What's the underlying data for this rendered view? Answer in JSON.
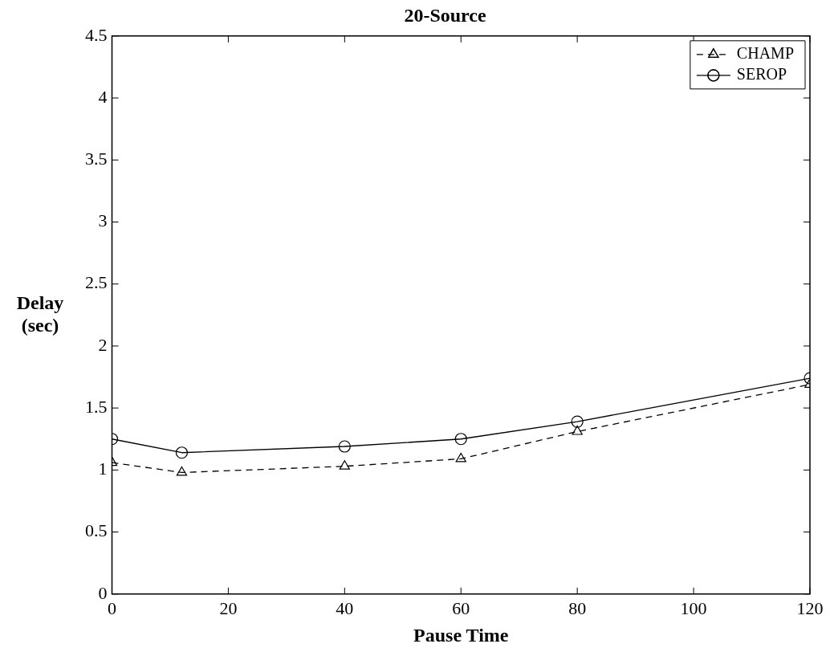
{
  "chart_data": {
    "type": "line",
    "title": "20-Source",
    "xlabel": "Pause Time",
    "ylabel": "Delay (sec)",
    "x": [
      0,
      12,
      40,
      60,
      80,
      120
    ],
    "series": [
      {
        "name": "CHAMP",
        "color": "#000000",
        "values": [
          1.06,
          0.98,
          1.03,
          1.09,
          1.31,
          1.69
        ],
        "marker": "triangle",
        "line_style": "dashed"
      },
      {
        "name": "SEROP",
        "color": "#000000",
        "values": [
          1.25,
          1.14,
          1.19,
          1.25,
          1.39,
          1.74
        ],
        "marker": "circle",
        "line_style": "solid"
      }
    ],
    "xlim": [
      0,
      120
    ],
    "xticks": [
      0,
      20,
      40,
      60,
      80,
      100,
      120
    ],
    "ylim": [
      0,
      4.5
    ],
    "yticks": [
      0,
      0.5,
      1,
      1.5,
      2,
      2.5,
      3,
      3.5,
      4,
      4.5
    ],
    "grid": false,
    "legend": "top right"
  }
}
